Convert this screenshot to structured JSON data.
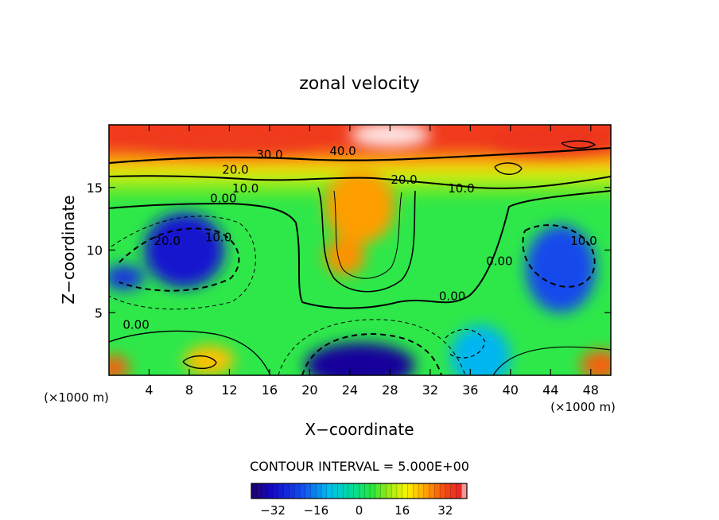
{
  "chart_data": {
    "type": "heatmap",
    "title": "zonal velocity",
    "xlabel": "X−coordinate",
    "ylabel": "Z−coordinate",
    "x_unit_left": "(×1000 m)",
    "x_unit_right": "(×1000 m)",
    "xlim": [
      0,
      50
    ],
    "ylim": [
      0,
      20
    ],
    "x_ticks": [
      4,
      8,
      12,
      16,
      20,
      24,
      28,
      32,
      36,
      40,
      44,
      48
    ],
    "x_tick_labels": [
      "4",
      "8",
      "12",
      "16",
      "20",
      "24",
      "28",
      "32",
      "36",
      "40",
      "44",
      "48"
    ],
    "y_ticks": [
      5,
      10,
      15
    ],
    "y_tick_labels": [
      "5",
      "10",
      "15"
    ],
    "contour_interval_text": "CONTOUR INTERVAL = 5.000E+00",
    "colorbar": {
      "range": [
        -40,
        40
      ],
      "ticks": [
        -32,
        -16,
        0,
        16,
        32
      ],
      "tick_labels": [
        "−32",
        "−16",
        "0",
        "16",
        "32"
      ]
    },
    "contour_labels": [
      {
        "text": "30.0",
        "x": 16,
        "y": 17.3
      },
      {
        "text": "20.0",
        "x": 12.6,
        "y": 16.1
      },
      {
        "text": "10.0",
        "x": 13.6,
        "y": 14.6
      },
      {
        "text": "0.00",
        "x": 11.4,
        "y": 13.8
      },
      {
        "text": "20.0",
        "x": 5.8,
        "y": 10.4
      },
      {
        "text": "10.0",
        "x": 10.9,
        "y": 10.7
      },
      {
        "text": "0.00",
        "x": 2.7,
        "y": 3.7
      },
      {
        "text": "40.0",
        "x": 23.3,
        "y": 17.6
      },
      {
        "text": "20.0",
        "x": 29.4,
        "y": 15.3
      },
      {
        "text": "10.0",
        "x": 35.1,
        "y": 14.6
      },
      {
        "text": "0.00",
        "x": 34.2,
        "y": 6.0
      },
      {
        "text": "0.00",
        "x": 38.9,
        "y": 8.8
      },
      {
        "text": "10.0",
        "x": 47.3,
        "y": 10.4
      }
    ],
    "field_blobs": [
      {
        "x": 28,
        "y": 19.2,
        "value": 45,
        "rx": 4,
        "ry": 1.0
      },
      {
        "x": 12,
        "y": 19.0,
        "value": 34,
        "rx": 9,
        "ry": 1.2
      },
      {
        "x": 44,
        "y": 18.8,
        "value": 35,
        "rx": 6,
        "ry": 1.2
      },
      {
        "x": 25,
        "y": 13.5,
        "value": 25,
        "rx": 3.5,
        "ry": 3
      },
      {
        "x": 23.5,
        "y": 9.5,
        "value": 26,
        "rx": 2,
        "ry": 1.5
      },
      {
        "x": 7.5,
        "y": 10,
        "value": -30,
        "rx": 4,
        "ry": 3
      },
      {
        "x": 1.5,
        "y": 7.8,
        "value": -26,
        "rx": 2,
        "ry": 1
      },
      {
        "x": 45,
        "y": 8.5,
        "value": -22,
        "rx": 3.5,
        "ry": 3.5
      },
      {
        "x": 25,
        "y": 0.8,
        "value": -36,
        "rx": 5.5,
        "ry": 1.8
      },
      {
        "x": 10,
        "y": 1.2,
        "value": 22,
        "rx": 2.5,
        "ry": 1.2
      },
      {
        "x": 0.5,
        "y": 0.6,
        "value": 30,
        "rx": 1.5,
        "ry": 1
      },
      {
        "x": 49,
        "y": 0.8,
        "value": 30,
        "rx": 2,
        "ry": 1.2
      },
      {
        "x": 37,
        "y": 1.5,
        "value": -12,
        "rx": 3,
        "ry": 2.5
      }
    ]
  }
}
